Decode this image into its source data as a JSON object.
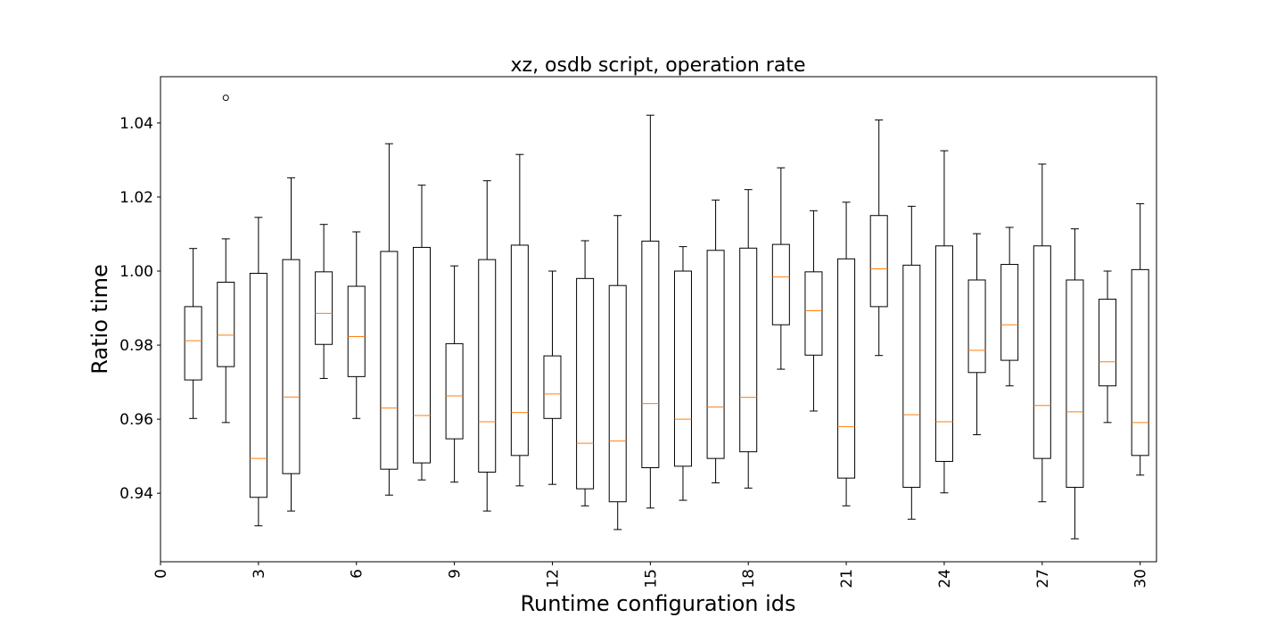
{
  "chart_data": {
    "type": "box",
    "title": "xz, osdb script, operation rate",
    "xlabel": "Runtime configuration ids",
    "ylabel": "Ratio time",
    "xlim": [
      0,
      30.5
    ],
    "ylim": [
      0.9215,
      1.0525
    ],
    "x_ticks": [
      "0",
      "3",
      "6",
      "9",
      "12",
      "15",
      "18",
      "21",
      "24",
      "27",
      "30"
    ],
    "x_tick_rotation": "vertical",
    "y_ticks": [
      "0.94",
      "0.96",
      "0.98",
      "1.00",
      "1.02",
      "1.04"
    ],
    "grid": false,
    "legend": "none",
    "colors": {
      "box": "#000000",
      "median": "#ff7f0e",
      "background": "#ffffff"
    },
    "boxes": [
      {
        "id": 1,
        "whisker_low": 0.9602,
        "q1": 0.9706,
        "median": 0.9812,
        "q3": 0.9904,
        "whisker_high": 1.0061,
        "outliers": []
      },
      {
        "id": 2,
        "whisker_low": 0.9591,
        "q1": 0.9742,
        "median": 0.9827,
        "q3": 0.997,
        "whisker_high": 1.0087,
        "outliers": [
          1.0468
        ]
      },
      {
        "id": 3,
        "whisker_low": 0.9312,
        "q1": 0.9389,
        "median": 0.9494,
        "q3": 0.9994,
        "whisker_high": 1.0145,
        "outliers": []
      },
      {
        "id": 4,
        "whisker_low": 0.9352,
        "q1": 0.9453,
        "median": 0.966,
        "q3": 1.0031,
        "whisker_high": 1.0252,
        "outliers": []
      },
      {
        "id": 5,
        "whisker_low": 0.971,
        "q1": 0.9802,
        "median": 0.9886,
        "q3": 0.9998,
        "whisker_high": 1.0126,
        "outliers": []
      },
      {
        "id": 6,
        "whisker_low": 0.9602,
        "q1": 0.9715,
        "median": 0.9823,
        "q3": 0.9959,
        "whisker_high": 1.0106,
        "outliers": []
      },
      {
        "id": 7,
        "whisker_low": 0.9395,
        "q1": 0.9465,
        "median": 0.963,
        "q3": 1.0053,
        "whisker_high": 1.0344,
        "outliers": []
      },
      {
        "id": 8,
        "whisker_low": 0.9436,
        "q1": 0.9482,
        "median": 0.961,
        "q3": 1.0064,
        "whisker_high": 1.0232,
        "outliers": []
      },
      {
        "id": 9,
        "whisker_low": 0.943,
        "q1": 0.9547,
        "median": 0.9663,
        "q3": 0.9804,
        "whisker_high": 1.0014,
        "outliers": []
      },
      {
        "id": 10,
        "whisker_low": 0.9352,
        "q1": 0.9457,
        "median": 0.9593,
        "q3": 1.0031,
        "whisker_high": 1.0244,
        "outliers": []
      },
      {
        "id": 11,
        "whisker_low": 0.942,
        "q1": 0.9502,
        "median": 0.9618,
        "q3": 1.007,
        "whisker_high": 1.0315,
        "outliers": []
      },
      {
        "id": 12,
        "whisker_low": 0.9424,
        "q1": 0.9602,
        "median": 0.9668,
        "q3": 0.9771,
        "whisker_high": 1.0,
        "outliers": []
      },
      {
        "id": 13,
        "whisker_low": 0.9366,
        "q1": 0.9412,
        "median": 0.9535,
        "q3": 0.998,
        "whisker_high": 1.0082,
        "outliers": []
      },
      {
        "id": 14,
        "whisker_low": 0.9302,
        "q1": 0.9377,
        "median": 0.9541,
        "q3": 0.9961,
        "whisker_high": 1.015,
        "outliers": []
      },
      {
        "id": 15,
        "whisker_low": 0.936,
        "q1": 0.9469,
        "median": 0.9642,
        "q3": 1.0081,
        "whisker_high": 1.0421,
        "outliers": []
      },
      {
        "id": 16,
        "whisker_low": 0.9381,
        "q1": 0.9473,
        "median": 0.96,
        "q3": 1.0,
        "whisker_high": 1.0066,
        "outliers": []
      },
      {
        "id": 17,
        "whisker_low": 0.9428,
        "q1": 0.9494,
        "median": 0.9633,
        "q3": 1.0056,
        "whisker_high": 1.0192,
        "outliers": []
      },
      {
        "id": 18,
        "whisker_low": 0.9414,
        "q1": 0.9512,
        "median": 0.9659,
        "q3": 1.0062,
        "whisker_high": 1.022,
        "outliers": []
      },
      {
        "id": 19,
        "whisker_low": 0.9735,
        "q1": 0.9855,
        "median": 0.9984,
        "q3": 1.0072,
        "whisker_high": 1.0279,
        "outliers": []
      },
      {
        "id": 20,
        "whisker_low": 0.9622,
        "q1": 0.9773,
        "median": 0.9893,
        "q3": 0.9998,
        "whisker_high": 1.0163,
        "outliers": []
      },
      {
        "id": 21,
        "whisker_low": 0.9366,
        "q1": 0.9441,
        "median": 0.958,
        "q3": 1.0033,
        "whisker_high": 1.0186,
        "outliers": []
      },
      {
        "id": 22,
        "whisker_low": 0.9772,
        "q1": 0.9904,
        "median": 1.0006,
        "q3": 1.015,
        "whisker_high": 1.0408,
        "outliers": []
      },
      {
        "id": 23,
        "whisker_low": 0.933,
        "q1": 0.9416,
        "median": 0.9612,
        "q3": 1.0016,
        "whisker_high": 1.0175,
        "outliers": []
      },
      {
        "id": 24,
        "whisker_low": 0.9401,
        "q1": 0.9486,
        "median": 0.9593,
        "q3": 1.0068,
        "whisker_high": 1.0325,
        "outliers": []
      },
      {
        "id": 25,
        "whisker_low": 0.9558,
        "q1": 0.9726,
        "median": 0.9786,
        "q3": 0.9976,
        "whisker_high": 1.0101,
        "outliers": []
      },
      {
        "id": 26,
        "whisker_low": 0.969,
        "q1": 0.9759,
        "median": 0.9855,
        "q3": 1.0018,
        "whisker_high": 1.0118,
        "outliers": []
      },
      {
        "id": 27,
        "whisker_low": 0.9377,
        "q1": 0.9494,
        "median": 0.9637,
        "q3": 1.0068,
        "whisker_high": 1.0289,
        "outliers": []
      },
      {
        "id": 28,
        "whisker_low": 0.9277,
        "q1": 0.9416,
        "median": 0.962,
        "q3": 0.9976,
        "whisker_high": 1.0114,
        "outliers": []
      },
      {
        "id": 29,
        "whisker_low": 0.9591,
        "q1": 0.969,
        "median": 0.9755,
        "q3": 0.9924,
        "whisker_high": 1.0,
        "outliers": []
      },
      {
        "id": 30,
        "whisker_low": 0.9449,
        "q1": 0.9502,
        "median": 0.9591,
        "q3": 1.0004,
        "whisker_high": 1.0182,
        "outliers": []
      }
    ]
  }
}
